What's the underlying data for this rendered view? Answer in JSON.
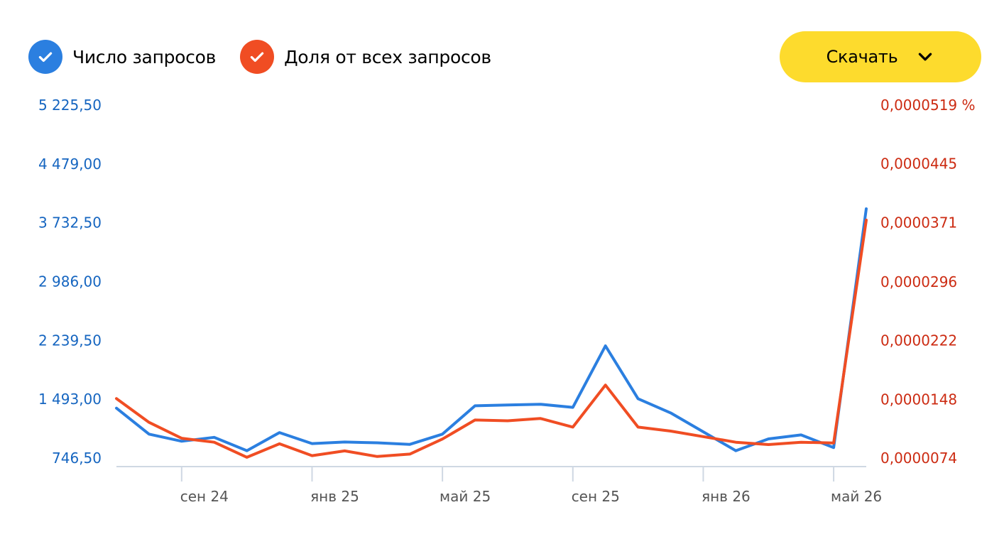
{
  "legend": [
    {
      "label": "Число запросов",
      "color": "#2b7fe0",
      "checked": true,
      "icon": "checkmark-icon"
    },
    {
      "label": "Доля от всех запросов",
      "color": "#f04d23",
      "checked": true,
      "icon": "checkmark-icon"
    }
  ],
  "download": {
    "label": "Скачать",
    "color": "#fddb2d",
    "icon": "chevron-down-icon"
  },
  "colors": {
    "left_axis": "#1565c0",
    "right_axis": "#cc2b12",
    "axis_line": "#cfd8e3"
  },
  "chart_data": {
    "type": "line",
    "x": [
      "2024-07",
      "2024-08",
      "2024-09",
      "2024-10",
      "2024-11",
      "2024-12",
      "2025-01",
      "2025-02",
      "2025-03",
      "2025-04",
      "2025-05",
      "2025-06",
      "2025-07",
      "2025-08",
      "2025-09",
      "2025-10",
      "2025-11",
      "2025-12",
      "2026-01",
      "2026-02",
      "2026-03",
      "2026-04",
      "2026-05",
      "2026-06"
    ],
    "x_tick_labels": [
      {
        "x": "2024-09",
        "label": "сен 24"
      },
      {
        "x": "2025-01",
        "label": "янв 25"
      },
      {
        "x": "2025-05",
        "label": "май 25"
      },
      {
        "x": "2025-09",
        "label": "сен 25"
      },
      {
        "x": "2026-01",
        "label": "янв 26"
      },
      {
        "x": "2026-05",
        "label": "май 26"
      }
    ],
    "left_axis": {
      "ticks": [
        "746,50",
        "1 493,00",
        "2 239,50",
        "2 986,00",
        "3 732,50",
        "4 479,00",
        "5 225,50"
      ],
      "tick_values": [
        746.5,
        1493.0,
        2239.5,
        2986.0,
        3732.5,
        4479.0,
        5225.5
      ],
      "ylim": [
        746.5,
        5225.5
      ]
    },
    "right_axis": {
      "ticks": [
        "0,0000074",
        "0,0000148",
        "0,0000222",
        "0,0000296",
        "0,0000371",
        "0,0000445",
        "0,0000519 %"
      ],
      "tick_values": [
        7.4e-06,
        1.48e-05,
        2.22e-05,
        2.96e-05,
        3.71e-05,
        4.45e-05,
        5.19e-05
      ],
      "ylim": [
        7.4e-06,
        5.19e-05
      ]
    },
    "series": [
      {
        "name": "Число запросов",
        "axis": "left",
        "color": "#2b7fe0",
        "values": [
          1380,
          1050,
          960,
          1010,
          840,
          1070,
          930,
          950,
          940,
          920,
          1050,
          1410,
          1420,
          1430,
          1390,
          2170,
          1500,
          1320,
          1080,
          840,
          990,
          1040,
          880,
          3910
        ]
      },
      {
        "name": "Доля от всех запросов",
        "axis": "right",
        "color": "#f04d23",
        "values": [
          1.49e-05,
          1.19e-05,
          9.9e-06,
          9.4e-06,
          7.5e-06,
          9.2e-06,
          7.7e-06,
          8.3e-06,
          7.6e-06,
          7.9e-06,
          9.8e-06,
          1.22e-05,
          1.21e-05,
          1.24e-05,
          1.13e-05,
          1.66e-05,
          1.13e-05,
          1.08e-05,
          1.01e-05,
          9.4e-06,
          9.1e-06,
          9.4e-06,
          9.3e-06,
          3.74e-05
        ]
      }
    ],
    "grid": false
  }
}
